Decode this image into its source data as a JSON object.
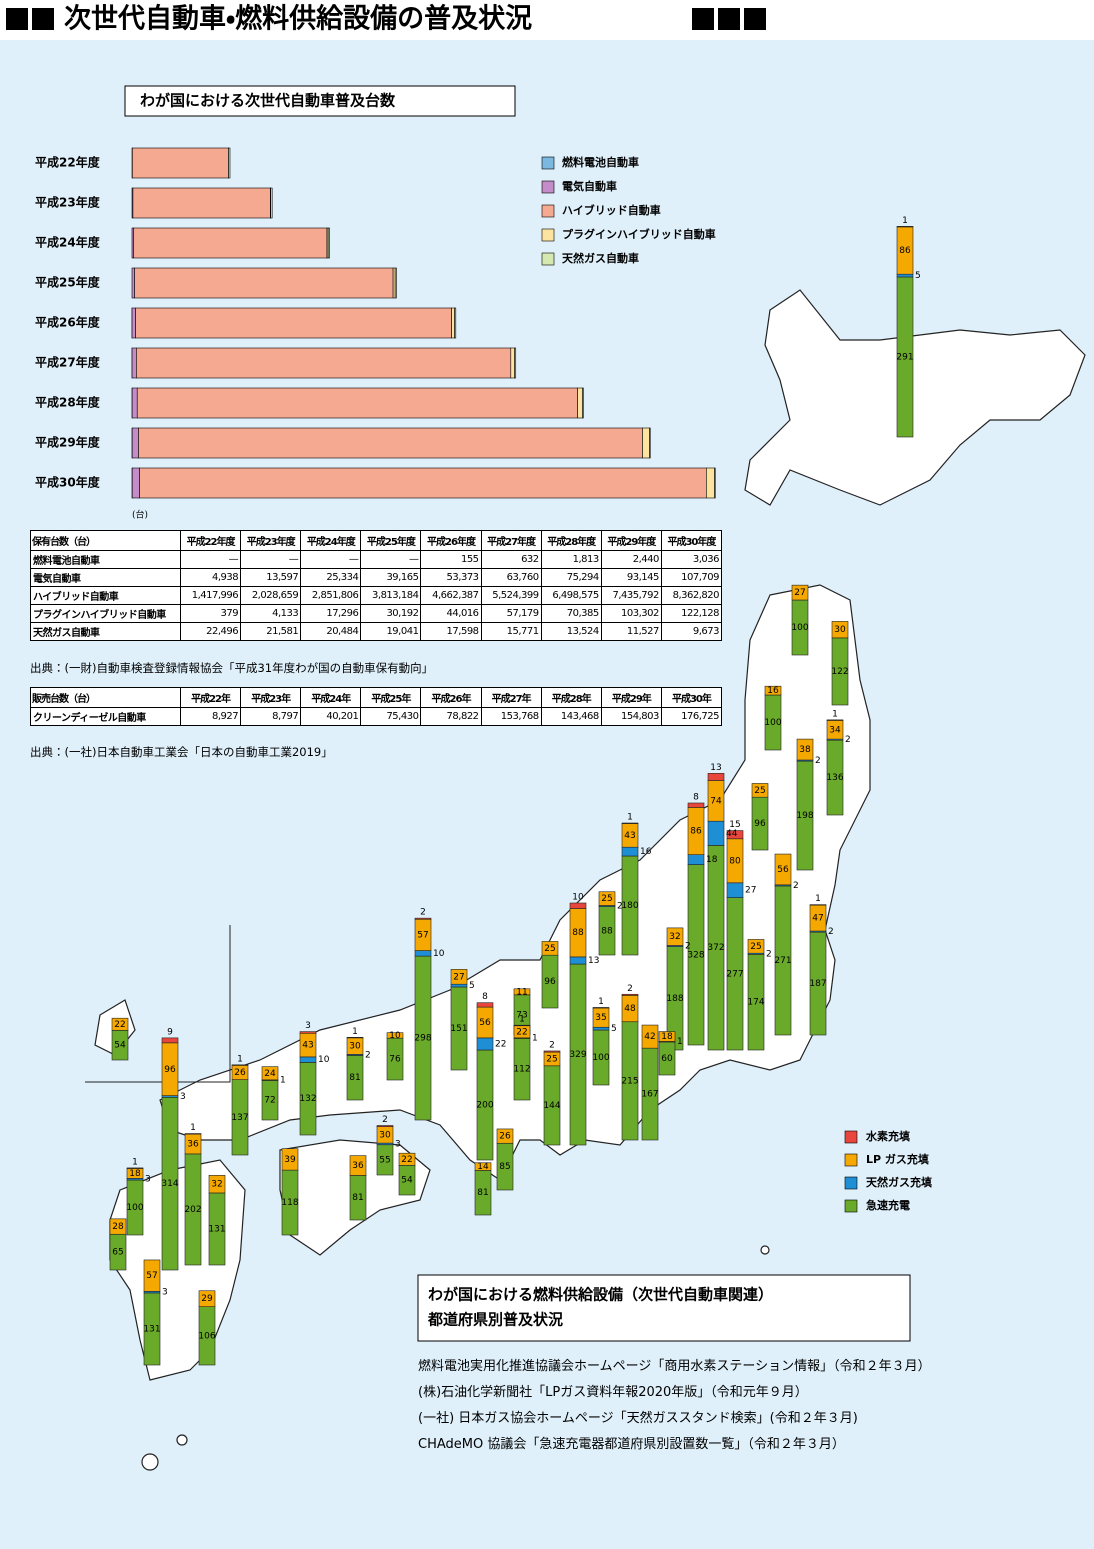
{
  "title": "次世代自動車・燃料供給設備の普及状況",
  "chart_data": [
    {
      "type": "bar",
      "orientation": "horizontal",
      "stacked": true,
      "title": "わが国における次世代自動車普及台数",
      "unit": "(台)",
      "categories": [
        "平成22年度",
        "平成23年度",
        "平成24年度",
        "平成25年度",
        "平成26年度",
        "平成27年度",
        "平成28年度",
        "平成29年度",
        "平成30年度"
      ],
      "xlim": [
        0,
        9000000
      ],
      "legend": "upper right",
      "series": [
        {
          "name": "燃料電池自動車",
          "color": "#7ab8e0",
          "values": [
            null,
            null,
            null,
            null,
            155,
            632,
            1813,
            2440,
            3036
          ],
          "value_labels": [
            "—",
            "—",
            "—",
            "—",
            "155",
            "632",
            "1,813",
            "2,440",
            "3,036"
          ]
        },
        {
          "name": "電気自動車",
          "color": "#c48cc8",
          "values": [
            4938,
            13597,
            25334,
            39165,
            53373,
            63760,
            75294,
            93145,
            107709
          ],
          "value_labels": [
            "4,938",
            "13,597",
            "25,334",
            "39,165",
            "53,373",
            "63,760",
            "75,294",
            "93,145",
            "107,709"
          ]
        },
        {
          "name": "ハイブリッド自動車",
          "color": "#f4a990",
          "values": [
            1417996,
            2028659,
            2851806,
            3813184,
            4662387,
            5524399,
            6498575,
            7435792,
            8362820
          ],
          "value_labels": [
            "1,417,996",
            "2,028,659",
            "2,851,806",
            "3,813,184",
            "4,662,387",
            "5,524,399",
            "6,498,575",
            "7,435,792",
            "8,362,820"
          ]
        },
        {
          "name": "プラグインハイブリッド自動車",
          "color": "#fde3a0",
          "values": [
            379,
            4133,
            17296,
            30192,
            44016,
            57179,
            70385,
            103302,
            122128
          ],
          "value_labels": [
            "379",
            "4,133",
            "17,296",
            "30,192",
            "44,016",
            "57,179",
            "70,385",
            "103,302",
            "122,128"
          ]
        },
        {
          "name": "天然ガス自動車",
          "color": "#d4e8b0",
          "values": [
            22496,
            21581,
            20484,
            19041,
            17598,
            15771,
            13524,
            11527,
            9673
          ],
          "value_labels": [
            "22,496",
            "21,581",
            "20,484",
            "19,041",
            "17,598",
            "15,771",
            "13,524",
            "11,527",
            "9,673"
          ]
        }
      ]
    },
    {
      "type": "bar",
      "stacked": true,
      "title": "わが国における燃料供給設備（次世代自動車関連）",
      "subtitle": "都道府県別普及状況",
      "legend": "lower right",
      "series": [
        {
          "name": "水素充填",
          "color": "#e8463c",
          "values": [
            1,
            0,
            0,
            0,
            1,
            0,
            0,
            0,
            1,
            0,
            15,
            13,
            8,
            1,
            0,
            0,
            0,
            10,
            0,
            0,
            0,
            2,
            1,
            1,
            8,
            0,
            2,
            2,
            0,
            0,
            3,
            1,
            0,
            1,
            2,
            0,
            0,
            0,
            0,
            1,
            1,
            0,
            0,
            0,
            0,
            9,
            0
          ]
        },
        {
          "name": "LP ガス充填",
          "color": "#f5a800",
          "values": [
            86,
            27,
            30,
            16,
            34,
            25,
            38,
            56,
            47,
            25,
            80,
            74,
            86,
            43,
            32,
            18,
            42,
            88,
            25,
            25,
            11,
            48,
            35,
            22,
            56,
            27,
            57,
            25,
            26,
            10,
            43,
            30,
            24,
            26,
            30,
            22,
            39,
            36,
            14,
            36,
            18,
            28,
            32,
            57,
            29,
            96,
            22
          ]
        },
        {
          "name": "天然ガス充填",
          "color": "#1e8fd5",
          "values": [
            5,
            0,
            0,
            0,
            2,
            0,
            2,
            2,
            2,
            2,
            27,
            44,
            18,
            16,
            2,
            1,
            0,
            13,
            2,
            0,
            0,
            0,
            5,
            1,
            22,
            5,
            10,
            0,
            0,
            0,
            10,
            2,
            1,
            0,
            3,
            0,
            0,
            0,
            0,
            0,
            3,
            0,
            0,
            3,
            0,
            3,
            0
          ]
        },
        {
          "name": "急速充電",
          "color": "#6aaa2a",
          "values": [
            291,
            100,
            122,
            100,
            136,
            96,
            198,
            271,
            187,
            174,
            277,
            372,
            328,
            180,
            188,
            60,
            167,
            329,
            88,
            96,
            73,
            215,
            100,
            112,
            200,
            151,
            298,
            144,
            85,
            76,
            132,
            81,
            72,
            137,
            55,
            54,
            118,
            81,
            81,
            202,
            100,
            65,
            131,
            131,
            106,
            314,
            54
          ]
        }
      ]
    }
  ],
  "holdings_table": {
    "title": "保有台数（台）",
    "source": "出典：(一財)自動車検査登録情報協会「平成31年度わが国の自動車保有動向」"
  },
  "sales_table": {
    "title": "販売台数（台）",
    "columns": [
      "平成22年",
      "平成23年",
      "平成24年",
      "平成25年",
      "平成26年",
      "平成27年",
      "平成28年",
      "平成29年",
      "平成30年"
    ],
    "rows": [
      {
        "label": "クリーンディーゼル自動車",
        "values": [
          "8,927",
          "8,797",
          "40,201",
          "75,430",
          "78,822",
          "153,768",
          "143,468",
          "154,803",
          "176,725"
        ]
      }
    ],
    "source": "出典：(一社)日本自動車工業会「日本の自動車工業2019」"
  },
  "map_sources": [
    "燃料電池実用化推進協議会ホームページ「商用水素ステーション情報」（令和２年３月）",
    "(株)石油化学新聞社「LPガス資料年報2020年版」（令和元年９月）",
    "(一社) 日本ガス協会ホームページ「天然ガススタンド検索」(令和２年３月)",
    "CHAdeMO 協議会「急速充電器都道府県別設置数一覧」（令和２年３月）"
  ]
}
